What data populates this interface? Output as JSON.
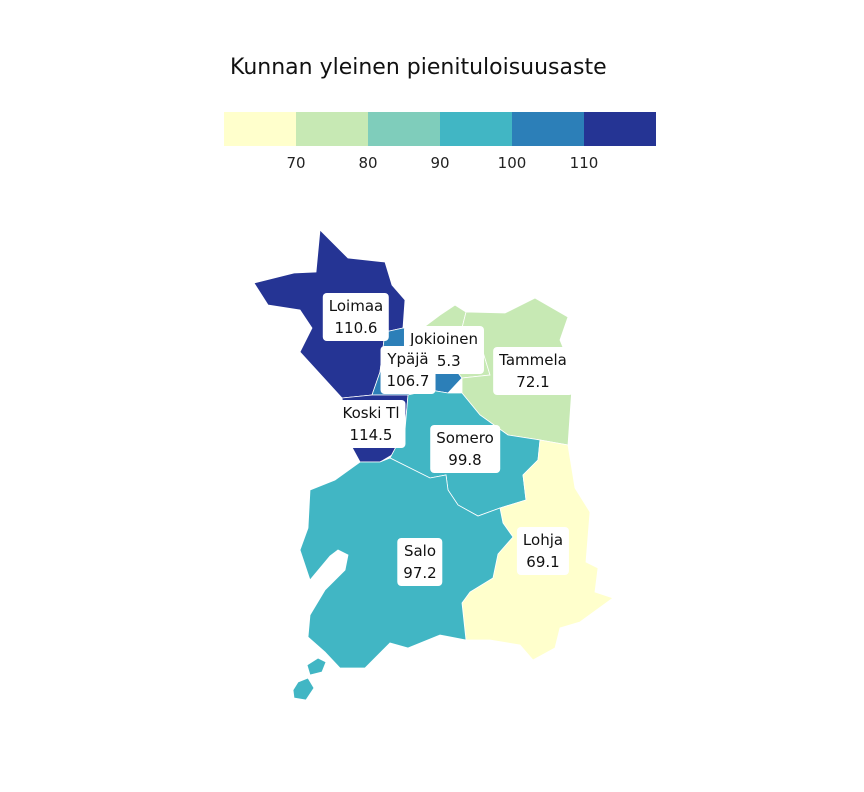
{
  "title": "Kunnan yleinen pienituloisuusaste",
  "legend": {
    "colors": [
      "#ffffcc",
      "#c7e9b4",
      "#7fcdbb",
      "#41b6c4",
      "#2c7fb8",
      "#253494"
    ],
    "ticks": [
      "70",
      "80",
      "90",
      "100",
      "110"
    ]
  },
  "regions": [
    {
      "name": "Loimaa",
      "value": "110.6",
      "color": "#253494"
    },
    {
      "name": "Jokioinen",
      "value": "75.3",
      "color": "#c7e9b4"
    },
    {
      "name": "Ypäjä",
      "value": "106.7",
      "color": "#2c7fb8"
    },
    {
      "name": "Tammela",
      "value": "72.1",
      "color": "#c7e9b4"
    },
    {
      "name": "Koski Tl",
      "value": "114.5",
      "color": "#253494"
    },
    {
      "name": "Somero",
      "value": "99.8",
      "color": "#41b6c4"
    },
    {
      "name": "Salo",
      "value": "97.2",
      "color": "#41b6c4"
    },
    {
      "name": "Lohja",
      "value": "69.1",
      "color": "#ffffcc"
    }
  ]
}
